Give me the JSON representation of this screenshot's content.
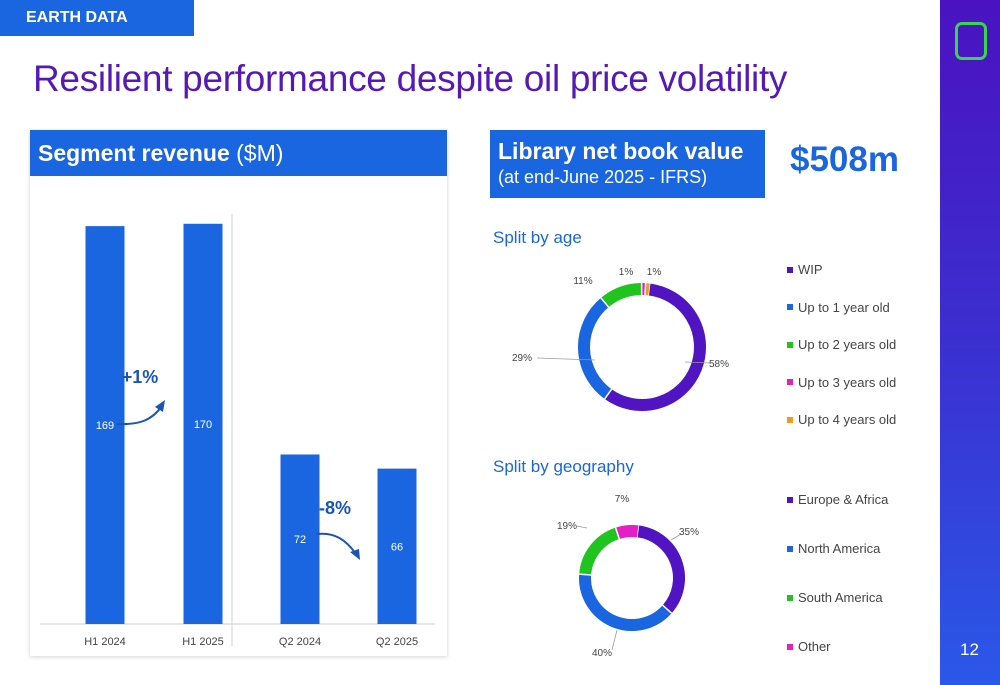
{
  "header": {
    "tag": "EARTH DATA",
    "title": "Resilient performance despite oil price volatility",
    "page_number": "12"
  },
  "segment": {
    "title_bold": "Segment revenue",
    "title_unit": " ($M)"
  },
  "library": {
    "title": "Library net book value",
    "subtitle": "(at end-June 2025 - IFRS)",
    "value": "$508m"
  },
  "colors": {
    "brand_blue": "#1a66e0",
    "title_purple": "#5519b8",
    "logo_green": "#39d64b"
  },
  "chart_data": [
    {
      "type": "bar",
      "categories": [
        "H1 2024",
        "H1 2025",
        "Q2 2024",
        "Q2 2025"
      ],
      "values": [
        169,
        170,
        72,
        66
      ],
      "data_labels": [
        "169",
        "170",
        "72",
        "66"
      ],
      "ylim": [
        0,
        175
      ],
      "color": "#1a66e0",
      "annotations": [
        {
          "text": "+1%",
          "between": [
            "H1 2024",
            "H1 2025"
          ]
        },
        {
          "text": "-8%",
          "between": [
            "Q2 2024",
            "Q2 2025"
          ]
        }
      ]
    },
    {
      "type": "pie",
      "title": "Split by age",
      "donut": true,
      "series": [
        {
          "name": "WIP",
          "value": 58,
          "label": "58%",
          "color": "#5014c2"
        },
        {
          "name": "Up to 1 year old",
          "value": 29,
          "label": "29%",
          "color": "#1a66e0"
        },
        {
          "name": "Up to 2 years old",
          "value": 11,
          "label": "11%",
          "color": "#1fc41f"
        },
        {
          "name": "Up to 3 years old",
          "value": 1,
          "label": "1%",
          "color": "#e61ec8"
        },
        {
          "name": "Up to 4 years old",
          "value": 1,
          "label": "1%",
          "color": "#f09a1e"
        }
      ]
    },
    {
      "type": "pie",
      "title": "Split by geography",
      "donut": true,
      "series": [
        {
          "name": "Europe & Africa",
          "value": 35,
          "label": "35%",
          "color": "#5014c2"
        },
        {
          "name": "North America",
          "value": 40,
          "label": "40%",
          "color": "#1a66e0"
        },
        {
          "name": "South America",
          "value": 19,
          "label": "19%",
          "color": "#1fc41f"
        },
        {
          "name": "Other",
          "value": 7,
          "label": "7%",
          "color": "#e61ec8"
        }
      ]
    }
  ]
}
